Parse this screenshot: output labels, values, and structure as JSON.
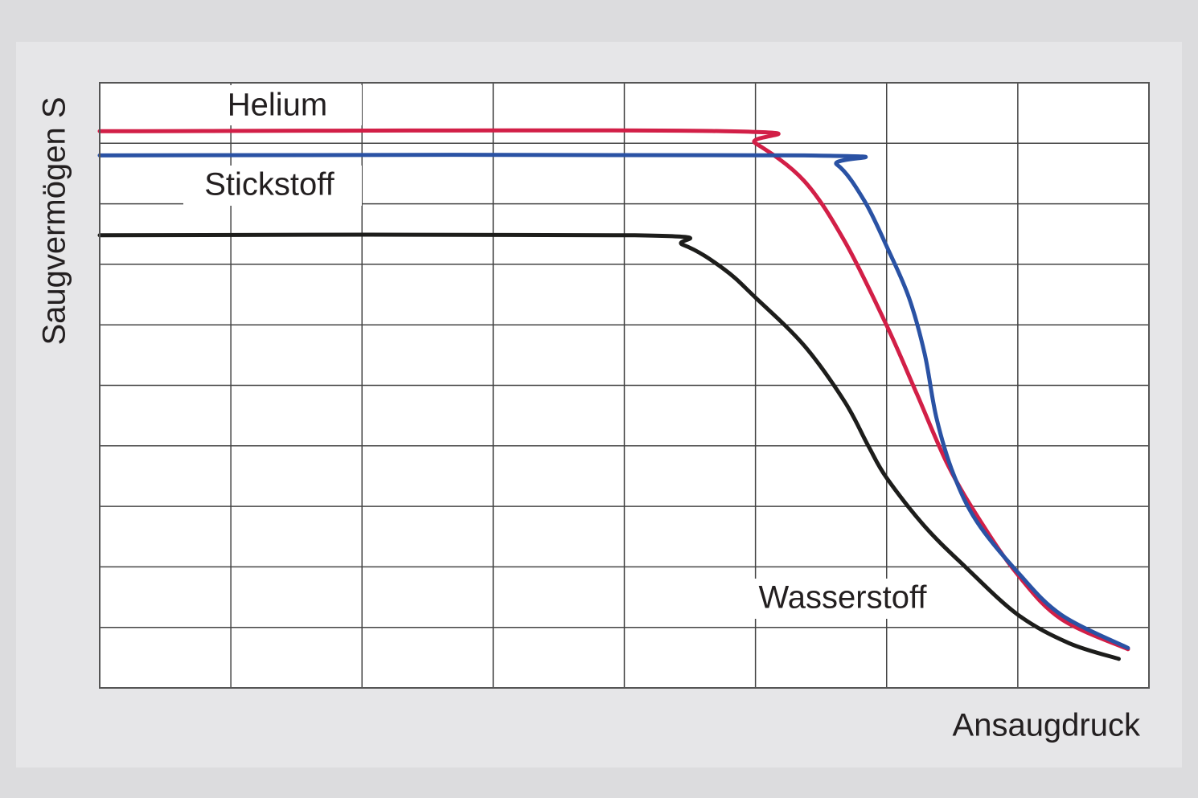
{
  "chart_data": {
    "type": "line",
    "y_label": "Saugvermögen S",
    "x_label": "Ansaugdruck",
    "xlim": [
      0,
      8
    ],
    "ylim": [
      0,
      10
    ],
    "xticks": [
      0,
      1,
      2,
      3,
      4,
      5,
      6,
      7,
      8
    ],
    "yticks": [
      0,
      1,
      2,
      3,
      4,
      5,
      6,
      7,
      8,
      9,
      10
    ],
    "grid": true,
    "series": [
      {
        "name": "Helium",
        "color": "#d21f47",
        "x": [
          0,
          4.76,
          5.0,
          5.37,
          5.68,
          6.0,
          6.23,
          6.47,
          6.72,
          7.0,
          7.33,
          7.84
        ],
        "values": [
          9.2,
          9.2,
          9.0,
          8.38,
          7.38,
          5.99,
          4.86,
          3.67,
          2.74,
          1.87,
          1.14,
          0.64
        ]
      },
      {
        "name": "Stickstoff",
        "color": "#2a52a4",
        "x": [
          0,
          5.37,
          5.62,
          5.83,
          6.01,
          6.17,
          6.29,
          6.38,
          6.51,
          6.69,
          7.0,
          7.33,
          7.84
        ],
        "values": [
          8.8,
          8.8,
          8.65,
          8.05,
          7.25,
          6.45,
          5.52,
          4.46,
          3.53,
          2.74,
          1.91,
          1.21,
          0.66
        ]
      },
      {
        "name": "Wasserstoff",
        "color": "#1d1d1b",
        "x": [
          0,
          4.08,
          4.45,
          4.76,
          5.0,
          5.37,
          5.68,
          5.86,
          6.0,
          6.29,
          6.6,
          7.0,
          7.39,
          7.77
        ],
        "values": [
          7.48,
          7.48,
          7.32,
          6.92,
          6.45,
          5.66,
          4.73,
          4.0,
          3.47,
          2.67,
          2.0,
          1.21,
          0.74,
          0.48
        ]
      }
    ]
  }
}
